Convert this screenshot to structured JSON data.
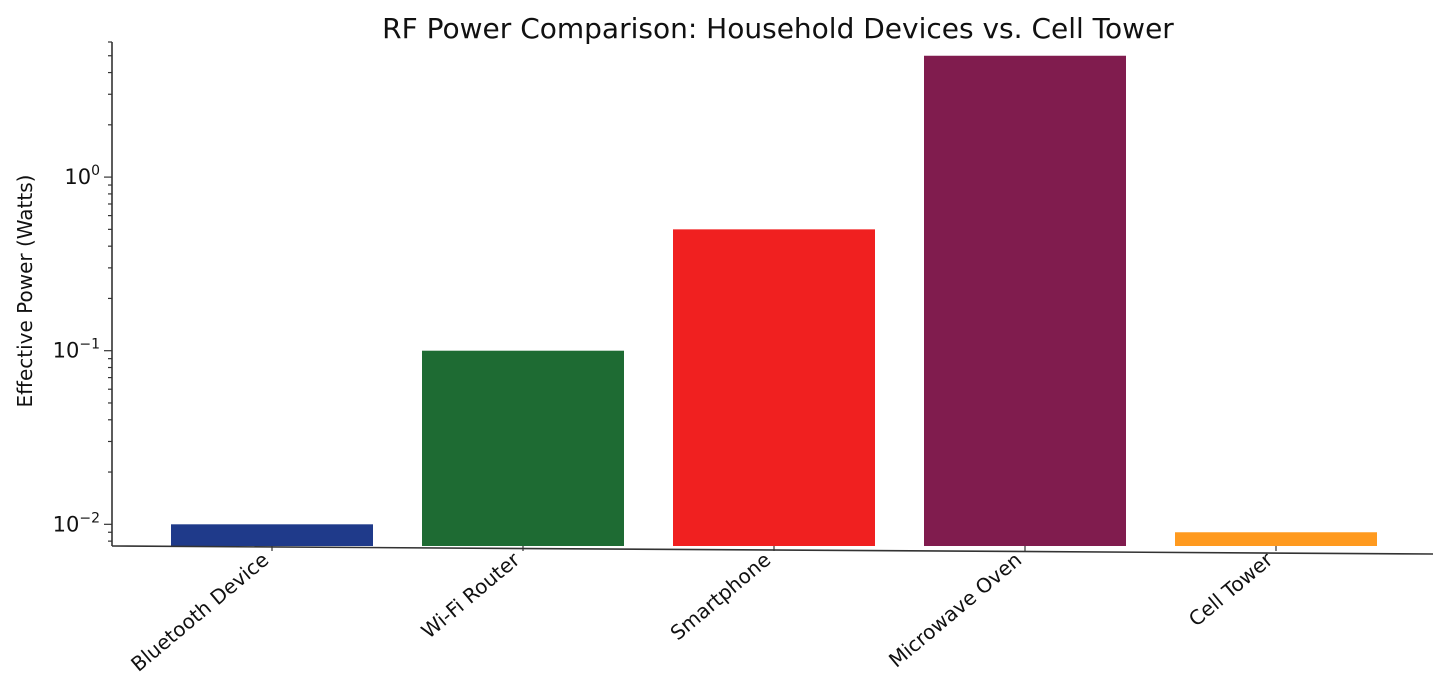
{
  "chart_data": {
    "type": "bar",
    "title": "RF Power Comparison: Household Devices vs. Cell Tower",
    "xlabel": "",
    "ylabel": "Effective Power (Watts)",
    "yscale": "log",
    "ylim": [
      0.0075,
      6
    ],
    "yticks": [
      {
        "value": 0.01,
        "base": "10",
        "exp": "−2"
      },
      {
        "value": 0.1,
        "base": "10",
        "exp": "−1"
      },
      {
        "value": 1,
        "base": "10",
        "exp": "0"
      }
    ],
    "categories": [
      "Bluetooth Device",
      "Wi-Fi Router",
      "Smartphone",
      "Microwave Oven",
      "Cell Tower"
    ],
    "values": [
      0.01,
      0.1,
      0.5,
      5,
      0.009
    ],
    "colors": [
      "#1f3a8a",
      "#1e6b33",
      "#f02020",
      "#801c4e",
      "#ff9a1f"
    ],
    "grid": false
  }
}
